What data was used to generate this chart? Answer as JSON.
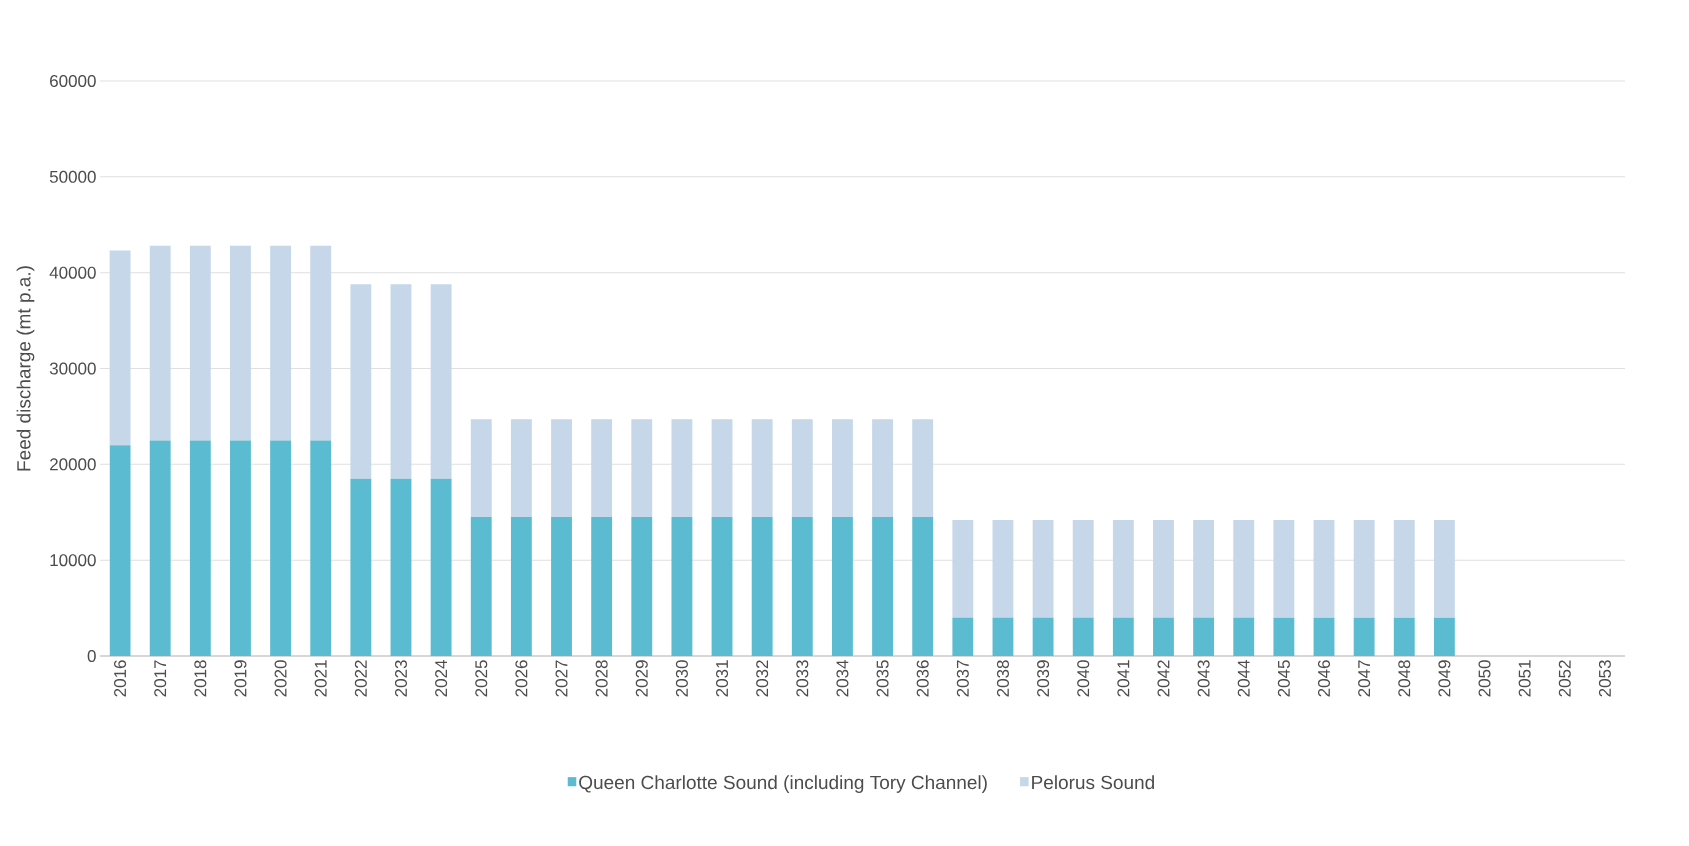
{
  "chart_data": {
    "type": "bar",
    "stacked": true,
    "ylabel": "Feed discharge (mt p.a.)",
    "categories": [
      "2016",
      "2017",
      "2018",
      "2019",
      "2020",
      "2021",
      "2022",
      "2023",
      "2024",
      "2025",
      "2026",
      "2027",
      "2028",
      "2029",
      "2030",
      "2031",
      "2032",
      "2033",
      "2034",
      "2035",
      "2036",
      "2037",
      "2038",
      "2039",
      "2040",
      "2041",
      "2042",
      "2043",
      "2044",
      "2045",
      "2046",
      "2047",
      "2048",
      "2049",
      "2050",
      "2051",
      "2052",
      "2053"
    ],
    "series": [
      {
        "name": "Queen Charlotte Sound (including Tory Channel)",
        "color": "#5bbcd1",
        "values": [
          22000,
          22500,
          22500,
          22500,
          22500,
          22500,
          18500,
          18500,
          18500,
          14500,
          14500,
          14500,
          14500,
          14500,
          14500,
          14500,
          14500,
          14500,
          14500,
          14500,
          14500,
          4000,
          4000,
          4000,
          4000,
          4000,
          4000,
          4000,
          4000,
          4000,
          4000,
          4000,
          4000,
          4000,
          0,
          0,
          0,
          0
        ]
      },
      {
        "name": "Pelorus Sound",
        "color": "#c5d7e8",
        "values": [
          20300,
          20300,
          20300,
          20300,
          20300,
          20300,
          20300,
          20300,
          20300,
          10200,
          10200,
          10200,
          10200,
          10200,
          10200,
          10200,
          10200,
          10200,
          10200,
          10200,
          10200,
          10200,
          10200,
          10200,
          10200,
          10200,
          10200,
          10200,
          10200,
          10200,
          10200,
          10200,
          10200,
          10200,
          0,
          0,
          0,
          0
        ]
      }
    ],
    "ylim": [
      0,
      60000
    ],
    "yticks": [
      0,
      10000,
      20000,
      30000,
      40000,
      50000,
      60000
    ],
    "grid": "y",
    "legend": "bottom"
  }
}
